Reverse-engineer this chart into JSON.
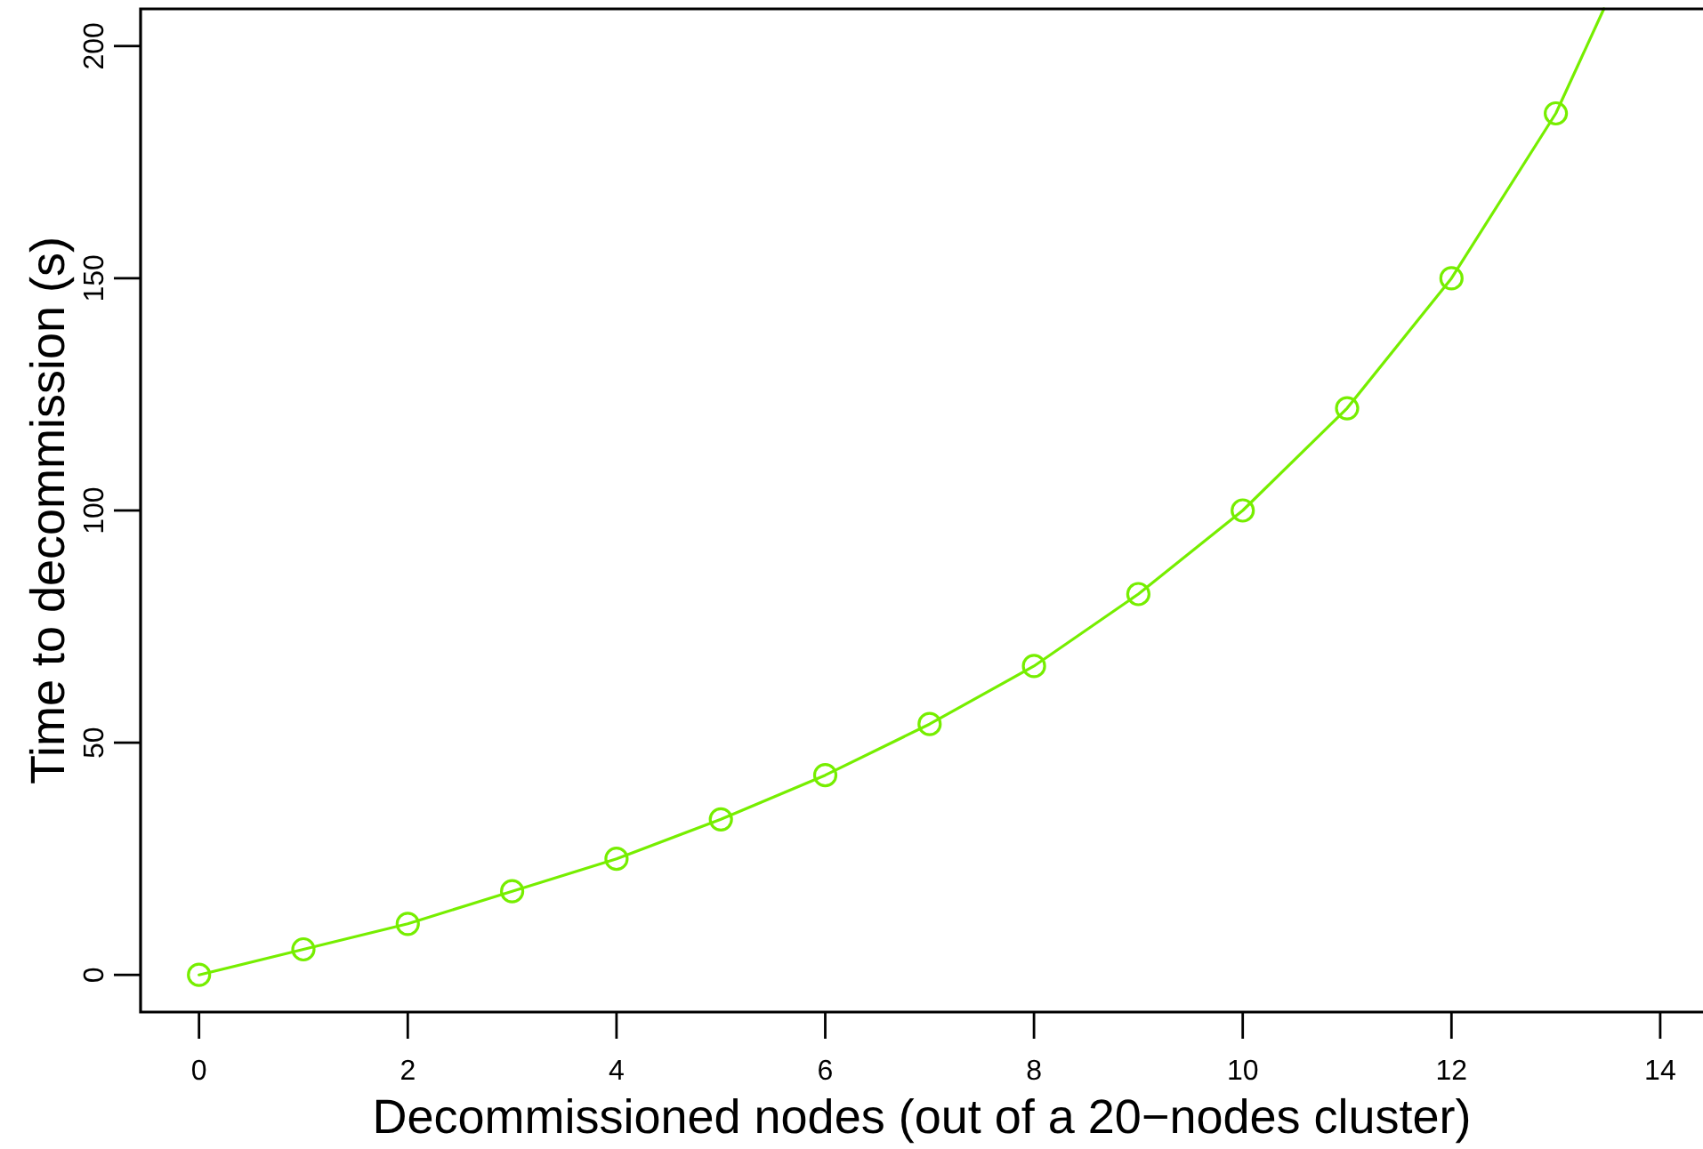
{
  "chart_data": {
    "type": "line",
    "xlabel": "Decommissioned nodes (out of a 20−nodes cluster)",
    "ylabel": "Time to decommission (s)",
    "xlim": [
      -0.56,
      14.41
    ],
    "ylim": [
      -8,
      208
    ],
    "xticks": [
      0,
      2,
      4,
      6,
      8,
      10,
      12,
      14
    ],
    "yticks": [
      0,
      50,
      100,
      150,
      200
    ],
    "series": [
      {
        "color": "#76ee00",
        "marker": "none",
        "x": [
          0,
          1,
          2,
          3,
          4,
          5,
          6,
          7,
          8,
          9,
          10,
          11,
          12,
          13,
          13.46
        ],
        "values": [
          0,
          5.5,
          11,
          18,
          25,
          33.5,
          43,
          54,
          66.5,
          82,
          100,
          122,
          150,
          185.5,
          208
        ]
      },
      {
        "type": "scatter",
        "color": "#76ee00",
        "marker": "circle",
        "x": [
          0,
          1,
          2,
          3,
          4,
          5,
          6,
          7,
          8,
          9,
          10,
          11,
          12,
          13
        ],
        "values": [
          0,
          5.5,
          11,
          18,
          25,
          33.5,
          43,
          54,
          66.5,
          82,
          100,
          122,
          150,
          185.5
        ]
      }
    ]
  }
}
